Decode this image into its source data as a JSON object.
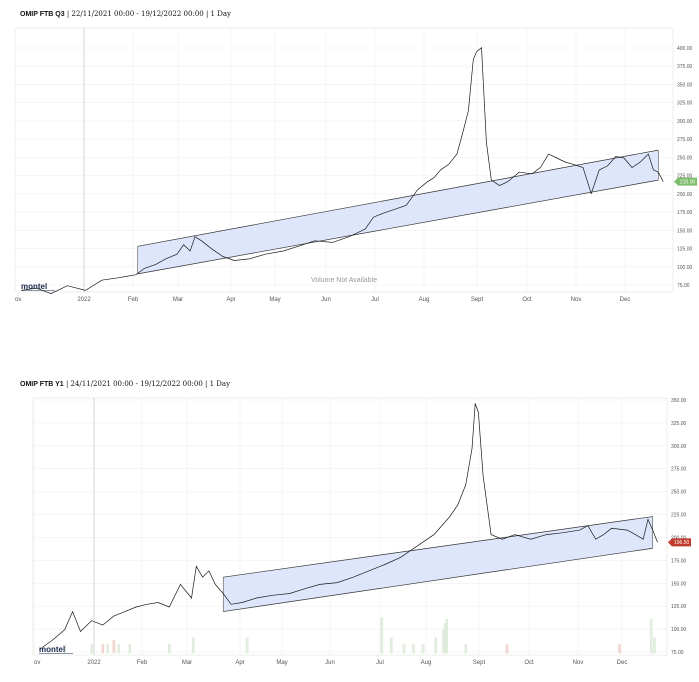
{
  "charts": [
    {
      "instrument": "OMIP FTB Q3",
      "meta": "| 22/11/2021 00:00 - 19/12/2022 00:00 | 1 Day",
      "logo": "montel",
      "volume_note": "Volume Not Available",
      "last_value": "210.00",
      "accent": "#7dbd6a"
    },
    {
      "instrument": "OMIP FTB Y1",
      "meta": "| 24/11/2021 00:00 - 19/12/2022 00:00 | 1 Day",
      "logo": "montel",
      "last_value": "196.50",
      "accent": "#c0392b"
    }
  ],
  "chart_data": [
    {
      "type": "line",
      "title": "OMIP FTB Q3",
      "x_ticks": [
        "ov",
        "2022",
        "Feb",
        "Mar",
        "Apr",
        "May",
        "Jun",
        "Jul",
        "Aug",
        "Sept",
        "Oct",
        "Nov",
        "Dec"
      ],
      "y_ticks": [
        "75.00",
        "100.00",
        "125.00",
        "150.00",
        "175.00",
        "200.00",
        "225.00",
        "250.00",
        "275.00",
        "300.00",
        "325.00",
        "350.00",
        "375.00",
        "400.00"
      ],
      "ylim": [
        70,
        405
      ],
      "x": [
        "2021-11-22",
        "2021-12-01",
        "2021-12-10",
        "2021-12-20",
        "2021-12-31",
        "2022-01-10",
        "2022-01-20",
        "2022-01-31",
        "2022-02-05",
        "2022-02-12",
        "2022-02-18",
        "2022-02-25",
        "2022-03-01",
        "2022-03-05",
        "2022-03-08",
        "2022-03-12",
        "2022-03-18",
        "2022-03-25",
        "2022-04-01",
        "2022-04-10",
        "2022-04-20",
        "2022-05-01",
        "2022-05-10",
        "2022-05-20",
        "2022-05-31",
        "2022-06-10",
        "2022-06-15",
        "2022-06-20",
        "2022-06-25",
        "2022-07-01",
        "2022-07-08",
        "2022-07-15",
        "2022-07-22",
        "2022-07-28",
        "2022-08-01",
        "2022-08-05",
        "2022-08-10",
        "2022-08-15",
        "2022-08-18",
        "2022-08-22",
        "2022-08-25",
        "2022-08-27",
        "2022-08-30",
        "2022-09-02",
        "2022-09-05",
        "2022-09-10",
        "2022-09-15",
        "2022-09-22",
        "2022-09-30",
        "2022-10-05",
        "2022-10-10",
        "2022-10-15",
        "2022-10-20",
        "2022-10-25",
        "2022-10-31",
        "2022-11-05",
        "2022-11-10",
        "2022-11-15",
        "2022-11-20",
        "2022-11-25",
        "2022-11-30",
        "2022-12-05",
        "2022-12-10",
        "2022-12-13",
        "2022-12-16",
        "2022-12-19"
      ],
      "values": [
        72,
        75,
        68,
        78,
        72,
        85,
        88,
        92,
        100,
        105,
        112,
        118,
        130,
        122,
        140,
        135,
        125,
        115,
        110,
        112,
        118,
        122,
        128,
        135,
        133,
        140,
        145,
        150,
        165,
        170,
        175,
        180,
        200,
        210,
        215,
        225,
        232,
        245,
        268,
        300,
        365,
        375,
        380,
        260,
        212,
        205,
        210,
        222,
        220,
        228,
        245,
        240,
        235,
        232,
        228,
        195,
        225,
        230,
        242,
        240,
        228,
        235,
        245,
        225,
        222,
        210
      ],
      "channel": {
        "upper": [
          {
            "x": "2022-02-01",
            "y": 128
          },
          {
            "x": "2022-12-16",
            "y": 250
          }
        ],
        "lower": [
          {
            "x": "2022-02-01",
            "y": 93
          },
          {
            "x": "2022-12-16",
            "y": 212
          }
        ]
      },
      "last_value": 210
    },
    {
      "type": "line",
      "title": "OMIP FTB Y1",
      "x_ticks": [
        "ov",
        "2022",
        "Feb",
        "Mar",
        "Apr",
        "May",
        "Jun",
        "Jul",
        "Aug",
        "Sept",
        "Oct",
        "Nov",
        "Dec"
      ],
      "y_ticks": [
        "75.00",
        "100.00",
        "125.00",
        "150.00",
        "175.00",
        "200.00",
        "225.00",
        "250.00",
        "275.00",
        "300.00",
        "325.00",
        "350.00"
      ],
      "ylim": [
        72,
        356
      ],
      "x": [
        "2021-11-24",
        "2021-12-02",
        "2021-12-10",
        "2021-12-15",
        "2021-12-20",
        "2021-12-27",
        "2022-01-03",
        "2022-01-10",
        "2022-01-17",
        "2022-01-24",
        "2022-01-31",
        "2022-02-07",
        "2022-02-14",
        "2022-02-21",
        "2022-02-28",
        "2022-03-03",
        "2022-03-07",
        "2022-03-11",
        "2022-03-15",
        "2022-03-20",
        "2022-03-25",
        "2022-04-01",
        "2022-04-10",
        "2022-04-20",
        "2022-05-01",
        "2022-05-10",
        "2022-05-20",
        "2022-05-31",
        "2022-06-10",
        "2022-06-20",
        "2022-06-30",
        "2022-07-10",
        "2022-07-20",
        "2022-07-31",
        "2022-08-05",
        "2022-08-10",
        "2022-08-15",
        "2022-08-20",
        "2022-08-24",
        "2022-08-26",
        "2022-08-28",
        "2022-08-31",
        "2022-09-05",
        "2022-09-12",
        "2022-09-20",
        "2022-09-30",
        "2022-10-10",
        "2022-10-20",
        "2022-10-31",
        "2022-11-05",
        "2022-11-10",
        "2022-11-15",
        "2022-11-20",
        "2022-11-30",
        "2022-12-05",
        "2022-12-10",
        "2022-12-13",
        "2022-12-16",
        "2022-12-19"
      ],
      "values": [
        78,
        88,
        100,
        120,
        98,
        110,
        105,
        115,
        120,
        125,
        128,
        130,
        125,
        150,
        135,
        170,
        158,
        165,
        150,
        140,
        128,
        130,
        135,
        138,
        140,
        145,
        150,
        152,
        158,
        165,
        172,
        180,
        192,
        205,
        215,
        225,
        238,
        260,
        300,
        350,
        340,
        270,
        205,
        200,
        205,
        200,
        205,
        207,
        210,
        215,
        200,
        205,
        212,
        210,
        205,
        200,
        222,
        210,
        196.5
      ],
      "channel": {
        "upper": [
          {
            "x": "2022-03-20",
            "y": 158
          },
          {
            "x": "2022-12-16",
            "y": 225
          }
        ],
        "lower": [
          {
            "x": "2022-03-20",
            "y": 120
          },
          {
            "x": "2022-12-16",
            "y": 190
          }
        ]
      },
      "volume_bars": [
        {
          "x": "2021-12-10",
          "v": 0.12,
          "dir": "up"
        },
        {
          "x": "2021-12-27",
          "v": 0.12,
          "dir": "up"
        },
        {
          "x": "2022-01-03",
          "v": 0.12,
          "dir": "down"
        },
        {
          "x": "2022-01-06",
          "v": 0.12,
          "dir": "up"
        },
        {
          "x": "2022-01-10",
          "v": 0.18,
          "dir": "down"
        },
        {
          "x": "2022-01-13",
          "v": 0.12,
          "dir": "up"
        },
        {
          "x": "2022-01-20",
          "v": 0.12,
          "dir": "up"
        },
        {
          "x": "2022-02-14",
          "v": 0.12,
          "dir": "up"
        },
        {
          "x": "2022-03-01",
          "v": 0.22,
          "dir": "up"
        },
        {
          "x": "2022-04-04",
          "v": 0.22,
          "dir": "up"
        },
        {
          "x": "2022-06-28",
          "v": 0.5,
          "dir": "up"
        },
        {
          "x": "2022-07-04",
          "v": 0.22,
          "dir": "up"
        },
        {
          "x": "2022-07-12",
          "v": 0.12,
          "dir": "up"
        },
        {
          "x": "2022-07-18",
          "v": 0.12,
          "dir": "up"
        },
        {
          "x": "2022-07-24",
          "v": 0.12,
          "dir": "up"
        },
        {
          "x": "2022-08-01",
          "v": 0.22,
          "dir": "up"
        },
        {
          "x": "2022-08-06",
          "v": 0.33,
          "dir": "up"
        },
        {
          "x": "2022-08-07",
          "v": 0.42,
          "dir": "up"
        },
        {
          "x": "2022-08-08",
          "v": 0.48,
          "dir": "up"
        },
        {
          "x": "2022-08-20",
          "v": 0.12,
          "dir": "up"
        },
        {
          "x": "2022-09-15",
          "v": 0.12,
          "dir": "down"
        },
        {
          "x": "2022-11-25",
          "v": 0.12,
          "dir": "down"
        },
        {
          "x": "2022-12-15",
          "v": 0.48,
          "dir": "up"
        },
        {
          "x": "2022-12-17",
          "v": 0.22,
          "dir": "up"
        }
      ],
      "last_value": 196.5
    }
  ]
}
